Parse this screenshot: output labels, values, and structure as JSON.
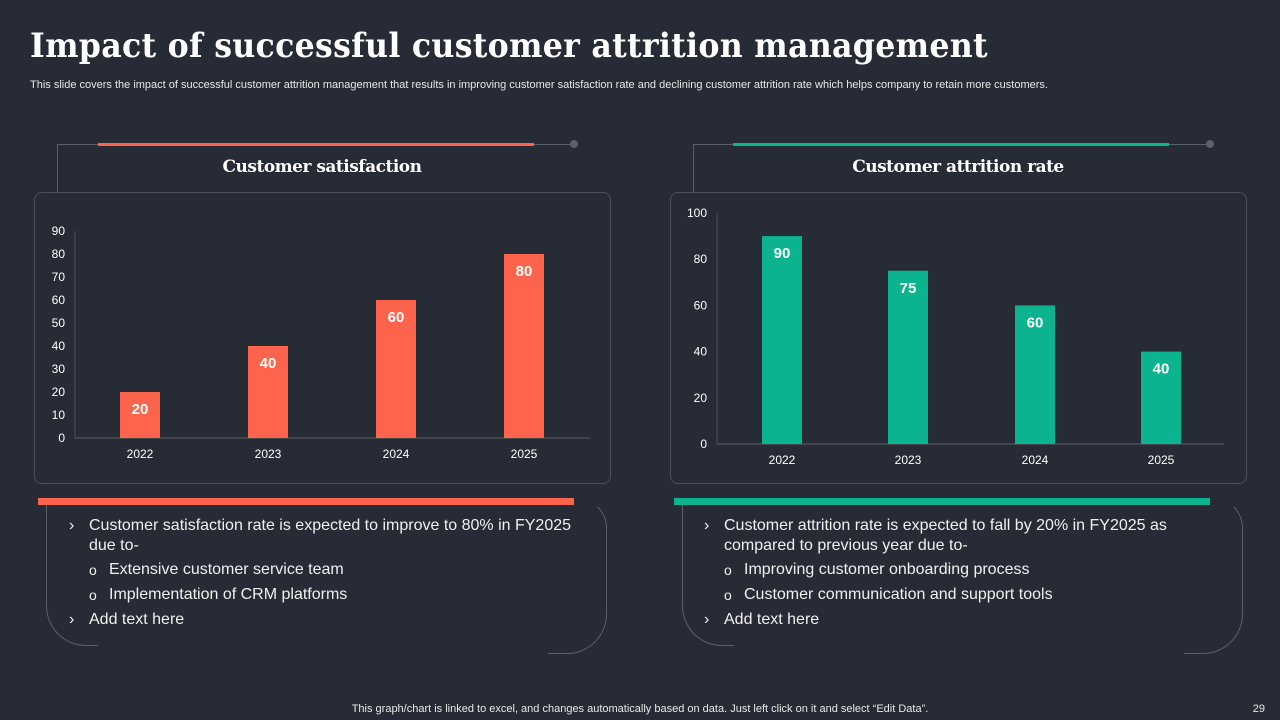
{
  "title": "Impact of successful customer attrition management",
  "subtitle": "This slide covers the impact of successful customer attrition management that results in improving customer satisfaction rate and declining customer attrition rate which helps company to retain more customers.",
  "colors": {
    "background": "#262b35",
    "coral": "#fe634c",
    "teal": "#0bb48e"
  },
  "chart_data": [
    {
      "type": "bar",
      "title": "Customer satisfaction",
      "categories": [
        "2022",
        "2023",
        "2024",
        "2025"
      ],
      "values": [
        20,
        40,
        60,
        80
      ],
      "ylim": [
        0,
        90
      ],
      "yticks": [
        0,
        10,
        20,
        30,
        40,
        50,
        60,
        70,
        80,
        90
      ],
      "color": "#fe634c",
      "data_labels": true,
      "grid": false
    },
    {
      "type": "bar",
      "title": "Customer attrition rate",
      "categories": [
        "2022",
        "2023",
        "2024",
        "2025"
      ],
      "values": [
        90,
        75,
        60,
        40
      ],
      "ylim": [
        0,
        100
      ],
      "yticks": [
        0,
        20,
        40,
        60,
        80,
        100
      ],
      "color": "#0bb48e",
      "data_labels": true,
      "grid": false
    }
  ],
  "left_text": {
    "main": "Customer satisfaction rate is expected to improve to 80% in FY2025 due to-",
    "subs": [
      "Extensive customer service team",
      "Implementation of CRM platforms"
    ],
    "extra": "Add text here"
  },
  "right_text": {
    "main": "Customer attrition rate is expected to fall by 20% in FY2025 as compared to previous year due to-",
    "subs": [
      "Improving customer onboarding process",
      "Customer communication and support tools"
    ],
    "extra": "Add text here"
  },
  "footer": "This graph/chart is linked to excel,  and changes automatically based on data. Just left click on it and select “Edit Data”.",
  "page_number": "29"
}
